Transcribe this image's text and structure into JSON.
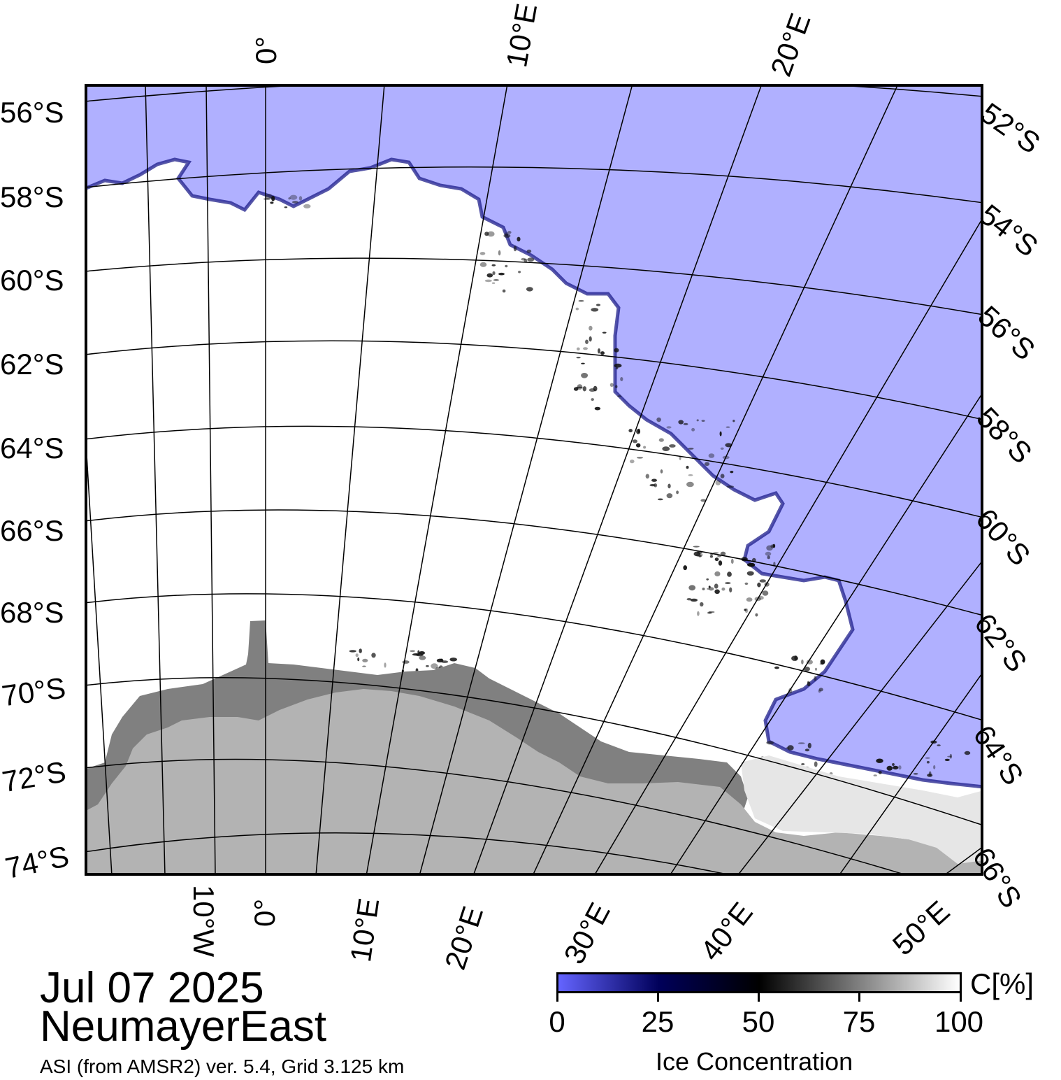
{
  "map": {
    "title_date": "Jul 07 2025",
    "region": "NeumayerEast",
    "product": "ASI (from AMSR2) ver. 5.4,  Grid 3.125 km",
    "colors": {
      "ocean": "#b0b0ff",
      "ice": "#ffffff",
      "land": "#b3b3b3",
      "ice_shelf": "#808080",
      "grid": "#000000"
    }
  },
  "axes": {
    "left_lat": [
      "56°S",
      "58°S",
      "60°S",
      "62°S",
      "64°S",
      "66°S",
      "68°S",
      "70°S",
      "72°S",
      "74°S"
    ],
    "right_lat": [
      "52°S",
      "54°S",
      "56°S",
      "58°S",
      "60°S",
      "62°S",
      "64°S",
      "66°S"
    ],
    "top_lon": [
      "0°",
      "10°E",
      "20°E"
    ],
    "bottom_lon": [
      "10°W",
      "0°",
      "10°E",
      "20°E",
      "30°E",
      "40°E",
      "50°E"
    ]
  },
  "colorbar": {
    "label": "Ice Concentration",
    "unit": "C[%]",
    "ticks": [
      "0",
      "25",
      "50",
      "75",
      "100"
    ],
    "gradient": [
      "#6464ff",
      "#00005a",
      "#000000",
      "#808080",
      "#ffffff"
    ]
  }
}
